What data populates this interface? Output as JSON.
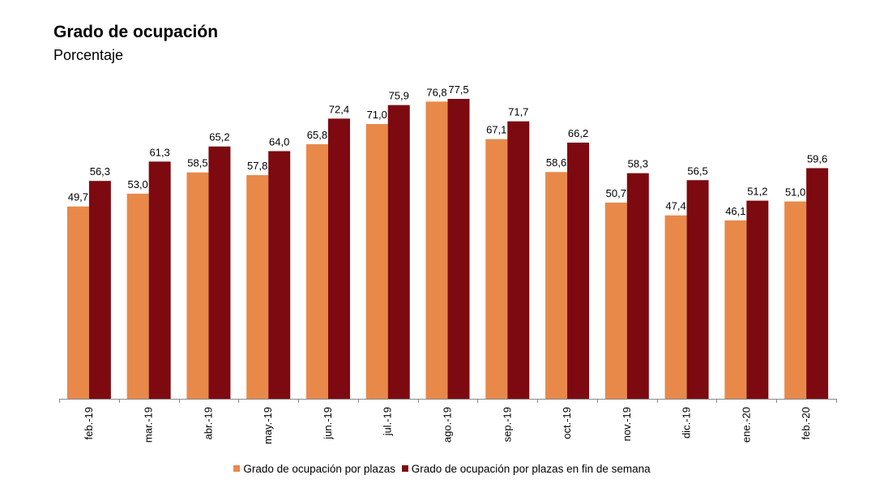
{
  "chart_data": {
    "type": "bar",
    "title": "Grado de ocupación",
    "subtitle": "Porcentaje",
    "categories": [
      "feb.-19",
      "mar.-19",
      "abr.-19",
      "may.-19",
      "jun.-19",
      "jul.-19",
      "ago.-19",
      "sep.-19",
      "oct.-19",
      "nov.-19",
      "dic.-19",
      "ene.-20",
      "feb.-20"
    ],
    "series": [
      {
        "name": "Grado de ocupación por plazas",
        "color": "#E8894A",
        "values": [
          49.7,
          53.0,
          58.5,
          57.8,
          65.8,
          71.0,
          76.8,
          67.1,
          58.6,
          50.7,
          47.4,
          46.1,
          51.0
        ],
        "labels": [
          "49,7",
          "53,0",
          "58,5",
          "57,8",
          "65,8",
          "71,0",
          "76,8",
          "67,1",
          "58,6",
          "50,7",
          "47,4",
          "46,1",
          "51,0"
        ]
      },
      {
        "name": "Grado de ocupación por plazas en fin de semana",
        "color": "#7D0A10",
        "values": [
          56.3,
          61.3,
          65.2,
          64.0,
          72.4,
          75.9,
          77.5,
          71.7,
          66.2,
          58.3,
          56.5,
          51.2,
          59.6
        ],
        "labels": [
          "56,3",
          "61,3",
          "65,2",
          "64,0",
          "72,4",
          "75,9",
          "77,5",
          "71,7",
          "66,2",
          "58,3",
          "56,5",
          "51,2",
          "59,6"
        ]
      }
    ],
    "ylim": [
      0,
      77.5
    ],
    "grid": false,
    "legend_position": "bottom"
  }
}
